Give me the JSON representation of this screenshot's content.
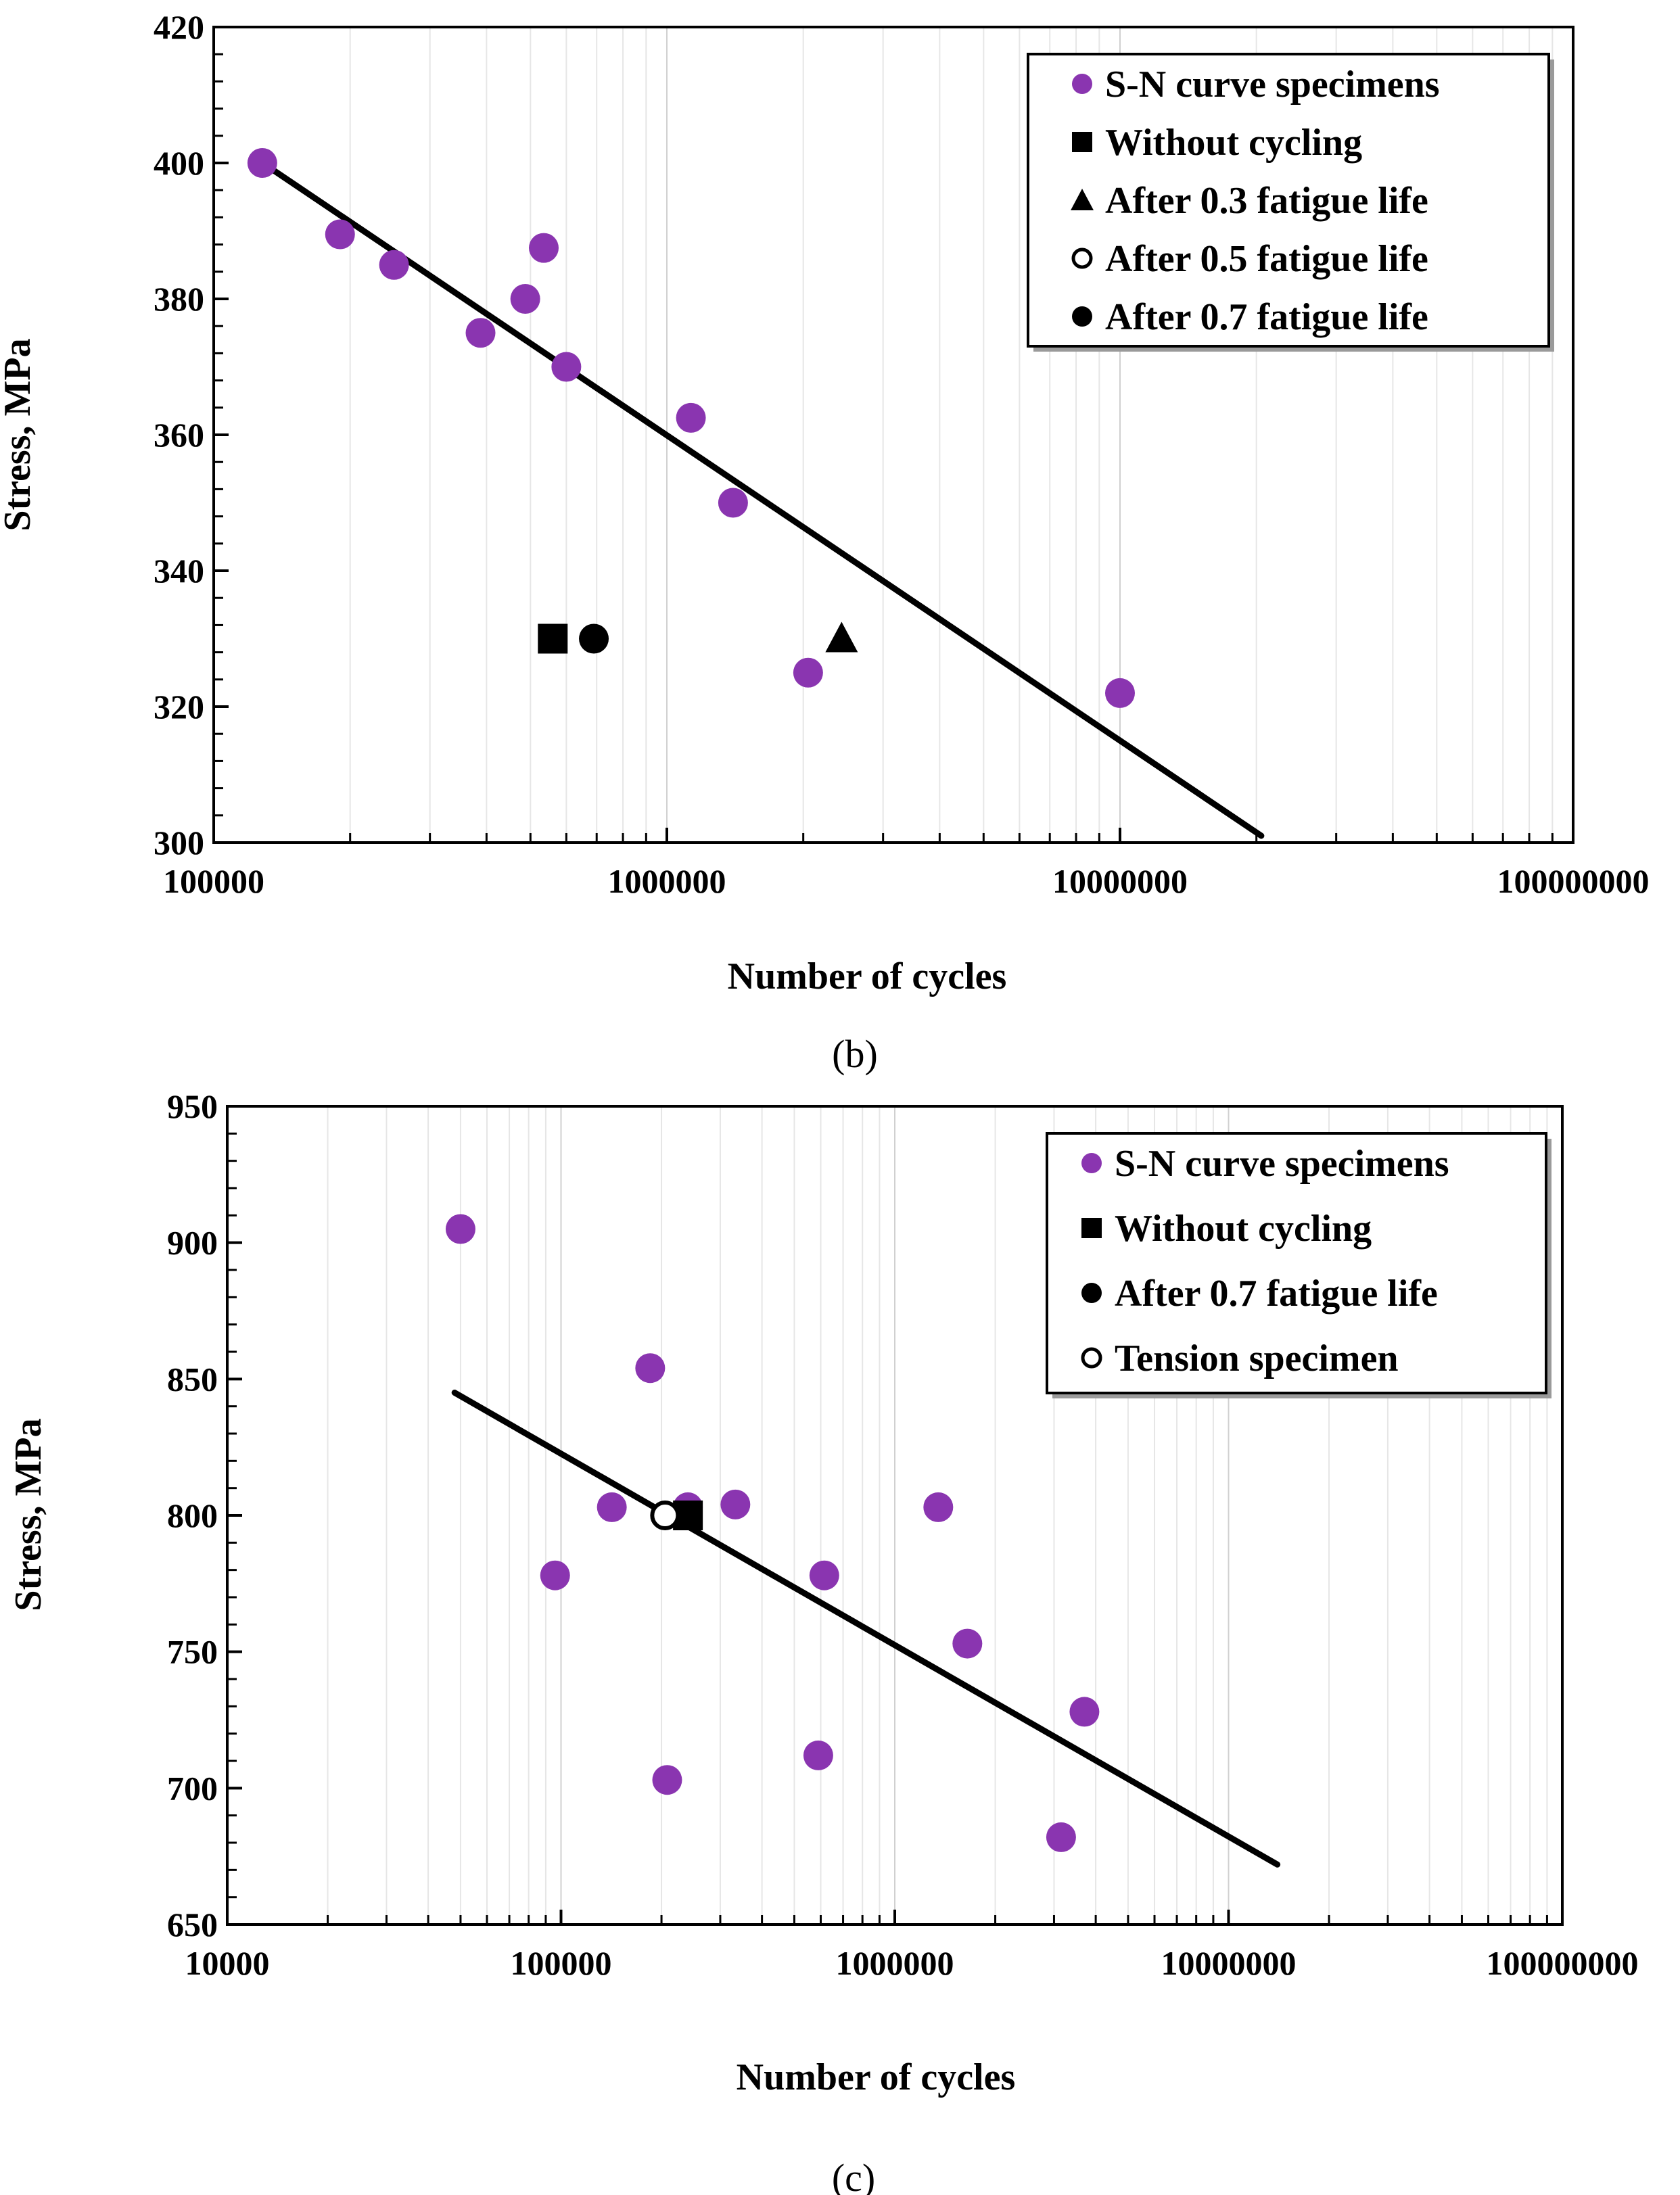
{
  "chart_data": [
    {
      "type": "scatter",
      "caption": "(b)",
      "xlabel": "Number of cycles",
      "ylabel": "Stress, MPa",
      "xscale": "log",
      "xlim": [
        100000,
        100000000
      ],
      "ylim": [
        300,
        420
      ],
      "xticks": [
        100000,
        1000000,
        10000000,
        100000000
      ],
      "xtick_labels": [
        "100000",
        "1000000",
        "10000000",
        "100000000"
      ],
      "yticks": [
        300,
        320,
        340,
        360,
        380,
        400,
        420
      ],
      "ytick_labels": [
        "300",
        "320",
        "340",
        "360",
        "380",
        "400",
        "420"
      ],
      "grid": true,
      "legend_position": "top-right",
      "series": [
        {
          "name": "S-N curve specimens",
          "marker": "circle-filled",
          "color": "#8a35b0",
          "points": [
            [
              128000,
              400
            ],
            [
              190000,
              389.5
            ],
            [
              250000,
              385
            ],
            [
              388000,
              375
            ],
            [
              487000,
              380
            ],
            [
              535000,
              387.5
            ],
            [
              600000,
              370
            ],
            [
              1130000,
              362.5
            ],
            [
              1400000,
              350
            ],
            [
              2050000,
              325
            ],
            [
              10000000,
              322
            ]
          ]
        },
        {
          "name": "Without cycling",
          "marker": "square-filled",
          "color": "#000000",
          "points": [
            [
              560000,
              330
            ]
          ]
        },
        {
          "name": "After 0.3 fatigue life",
          "marker": "triangle-filled",
          "color": "#000000",
          "points": [
            [
              2430000,
              330
            ]
          ]
        },
        {
          "name": "After 0.5 fatigue life",
          "marker": "circle-open",
          "color": "#000000",
          "points": []
        },
        {
          "name": "After 0.7 fatigue life",
          "marker": "circle-filled",
          "color": "#000000",
          "points": [
            [
              690000,
              330
            ]
          ]
        }
      ],
      "fit_line": {
        "color": "#000000",
        "points": [
          [
            125000,
            400.5
          ],
          [
            20500000,
            301
          ]
        ]
      }
    },
    {
      "type": "scatter",
      "caption": "(c)",
      "xlabel": "Number of cycles",
      "ylabel": "Stress, MPa",
      "xscale": "log",
      "xlim": [
        10000,
        100000000
      ],
      "ylim": [
        650,
        950
      ],
      "xticks": [
        10000,
        100000,
        1000000,
        10000000,
        100000000
      ],
      "xtick_labels": [
        "10000",
        "100000",
        "1000000",
        "10000000",
        "100000000"
      ],
      "yticks": [
        650,
        700,
        750,
        800,
        850,
        900,
        950
      ],
      "ytick_labels": [
        "650",
        "700",
        "750",
        "800",
        "850",
        "900",
        "950"
      ],
      "grid": true,
      "legend_position": "top-right",
      "series": [
        {
          "name": "S-N curve specimens",
          "marker": "circle-filled",
          "color": "#8a35b0",
          "points": [
            [
              50000,
              905
            ],
            [
              96000,
              778
            ],
            [
              142000,
              803
            ],
            [
              185000,
              854
            ],
            [
              208000,
              703
            ],
            [
              240000,
              803
            ],
            [
              333000,
              804
            ],
            [
              590000,
              712
            ],
            [
              615000,
              778
            ],
            [
              1350000,
              803
            ],
            [
              1650000,
              753
            ],
            [
              3150000,
              682
            ],
            [
              3700000,
              728
            ]
          ]
        },
        {
          "name": "Without cycling",
          "marker": "square-filled",
          "color": "#000000",
          "points": [
            [
              240000,
              800
            ]
          ]
        },
        {
          "name": "After 0.7 fatigue life",
          "marker": "circle-filled",
          "color": "#000000",
          "points": [
            [
              232000,
              800
            ]
          ]
        },
        {
          "name": "Tension specimen",
          "marker": "circle-open",
          "color": "#000000",
          "points": [
            [
              205000,
              800
            ]
          ]
        }
      ],
      "fit_line": {
        "color": "#000000",
        "points": [
          [
            48000,
            845
          ],
          [
            14000000,
            672
          ]
        ]
      }
    }
  ]
}
